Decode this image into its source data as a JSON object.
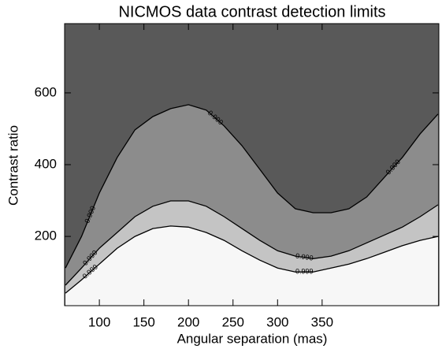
{
  "chart_data": {
    "type": "contour",
    "title": "NICMOS data contrast detection limits",
    "x_label": "Angular separation (mas)",
    "y_label": "Contrast ratio",
    "xlim": [
      61,
      481
    ],
    "ylim": [
      7,
      793
    ],
    "xticks": [
      100,
      150,
      200,
      250,
      300,
      350
    ],
    "yticks": [
      200,
      400,
      600
    ],
    "background_color": "#595959",
    "x": [
      62,
      80,
      100,
      120,
      140,
      160,
      180,
      200,
      220,
      240,
      260,
      280,
      300,
      320,
      340,
      360,
      380,
      400,
      420,
      440,
      460,
      480
    ],
    "series": [
      {
        "name": "0.900",
        "color": "#8c8c8c",
        "values": [
          112,
          200,
          321,
          420,
          497,
          534,
          556,
          567,
          552,
          508,
          453,
          387,
          321,
          277,
          266,
          266,
          277,
          310,
          365,
          420,
          486,
          541
        ]
      },
      {
        "name": "0.990",
        "color": "#c4c4c4",
        "values": [
          64,
          112,
          167,
          211,
          255,
          284,
          299,
          299,
          284,
          255,
          222,
          189,
          160,
          145,
          138,
          145,
          160,
          182,
          204,
          226,
          255,
          288
        ]
      },
      {
        "name": "0.999",
        "color": "#f7f7f7",
        "values": [
          42,
          79,
          123,
          167,
          200,
          222,
          229,
          226,
          211,
          189,
          160,
          134,
          112,
          101,
          101,
          112,
          123,
          138,
          156,
          174,
          189,
          200
        ]
      }
    ]
  }
}
